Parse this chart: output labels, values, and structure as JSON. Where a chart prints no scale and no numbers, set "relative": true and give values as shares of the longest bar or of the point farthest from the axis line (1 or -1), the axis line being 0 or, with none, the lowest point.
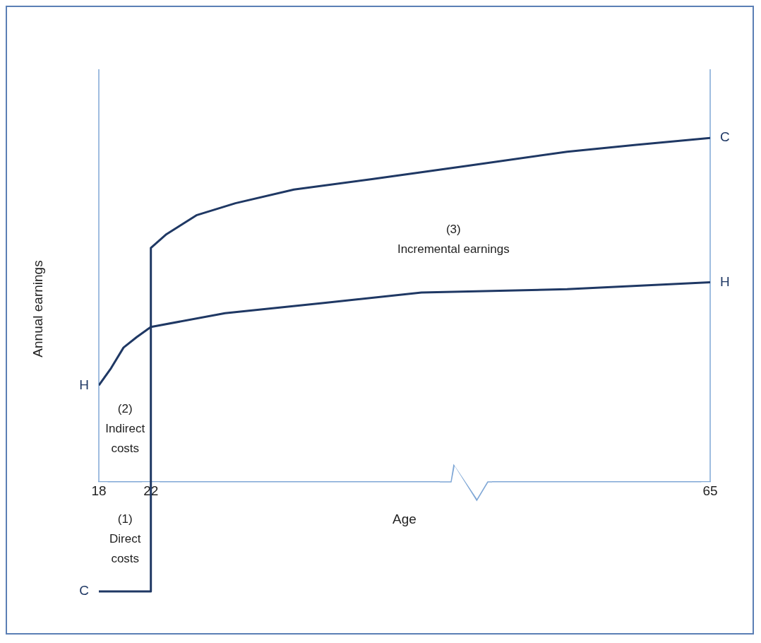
{
  "chart_data": {
    "type": "line",
    "relative": true,
    "xlabel": "Age",
    "ylabel": "Annual earnings",
    "xlim": [
      18,
      65
    ],
    "xticks": [
      18,
      22,
      65
    ],
    "legend": false,
    "grid": false,
    "marker": "none",
    "line_style": "solid",
    "series": [
      {
        "name": "H",
        "color": "#1f3864",
        "x": [
          18,
          18.94,
          19.9,
          20.9,
          22,
          27.7,
          35.3,
          42.8,
          54,
          65
        ],
        "values": [
          0.28,
          0.33,
          0.39,
          0.42,
          0.45,
          0.49,
          0.52,
          0.55,
          0.56,
          0.58
        ]
      },
      {
        "name": "C",
        "color": "#1f3864",
        "x": [
          18,
          22,
          22,
          23.2,
          25.5,
          28.5,
          33,
          39,
          46.5,
          54,
          59.3,
          65
        ],
        "values": [
          -0.32,
          -0.32,
          0.68,
          0.72,
          0.775,
          0.81,
          0.85,
          0.88,
          0.92,
          0.96,
          0.98,
          1
        ]
      }
    ],
    "ref_lines": [
      {
        "axis": "x",
        "value": 18,
        "color": "#7fa7d6"
      },
      {
        "axis": "x",
        "value": 65,
        "color": "#7fa7d6"
      }
    ],
    "annotations": [
      "(1)\nDirect\ncosts",
      "(2)\nIndirect\ncosts",
      "(3)\nIncremental earnings"
    ]
  }
}
